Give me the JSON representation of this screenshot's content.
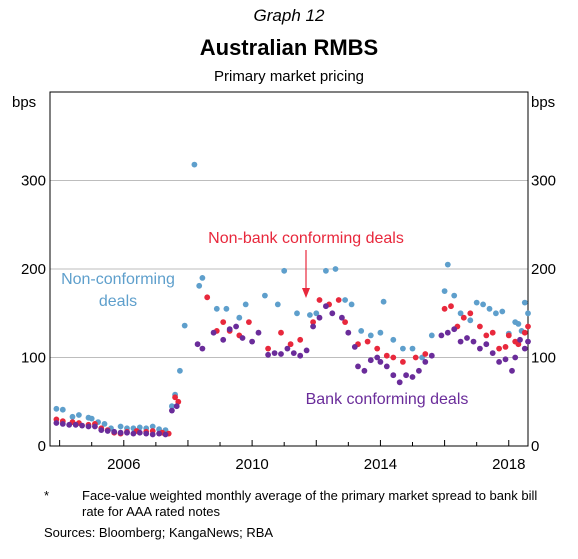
{
  "header": {
    "graph_label": "Graph 12",
    "title": "Australian RMBS",
    "subtitle": "Primary market pricing"
  },
  "footnote": {
    "marker": "*",
    "text": "Face-value weighted monthly average of the primary market spread to bank bill rate for AAA rated notes"
  },
  "sources": "Sources:  Bloomberg; KangaNews; RBA",
  "chart_data": {
    "type": "scatter",
    "ylabel_left": "bps",
    "ylabel_right": "bps",
    "xlim": [
      2003.7,
      2018.6
    ],
    "ylim": [
      0,
      400
    ],
    "yticks": [
      0,
      100,
      200,
      300
    ],
    "xticks": [
      2006,
      2010,
      2014,
      2018
    ],
    "grid": true,
    "colors": {
      "non_conforming": "#5e9fcc",
      "non_bank_conforming": "#e8283c",
      "bank_conforming": "#6a2c9a"
    },
    "annotations": [
      {
        "text": "Non-conforming",
        "series": "non_conforming"
      },
      {
        "text": "deals",
        "series": "non_conforming"
      },
      {
        "text": "Non-bank conforming deals",
        "series": "non_bank_conforming"
      },
      {
        "text": "Bank conforming deals",
        "series": "bank_conforming"
      }
    ],
    "series": [
      {
        "key": "non_conforming",
        "points": [
          [
            2003.9,
            42
          ],
          [
            2004.1,
            41
          ],
          [
            2004.4,
            33
          ],
          [
            2004.6,
            35
          ],
          [
            2004.9,
            32
          ],
          [
            2005.0,
            31
          ],
          [
            2005.2,
            27
          ],
          [
            2005.4,
            25
          ],
          [
            2005.6,
            20
          ],
          [
            2005.9,
            22
          ],
          [
            2006.1,
            20
          ],
          [
            2006.3,
            20
          ],
          [
            2006.5,
            21
          ],
          [
            2006.7,
            20
          ],
          [
            2006.9,
            22
          ],
          [
            2007.1,
            19
          ],
          [
            2007.3,
            18
          ],
          [
            2007.5,
            45
          ],
          [
            2007.6,
            58
          ],
          [
            2007.75,
            85
          ],
          [
            2007.9,
            136
          ],
          [
            2008.2,
            318
          ],
          [
            2008.35,
            181
          ],
          [
            2008.45,
            190
          ],
          [
            2008.9,
            155
          ],
          [
            2009.2,
            155
          ],
          [
            2009.6,
            145
          ],
          [
            2009.8,
            160
          ],
          [
            2010.4,
            170
          ],
          [
            2010.8,
            160
          ],
          [
            2011.0,
            198
          ],
          [
            2011.4,
            150
          ],
          [
            2011.8,
            148
          ],
          [
            2012.0,
            150
          ],
          [
            2012.3,
            198
          ],
          [
            2012.6,
            200
          ],
          [
            2012.9,
            165
          ],
          [
            2013.1,
            160
          ],
          [
            2013.4,
            130
          ],
          [
            2013.7,
            125
          ],
          [
            2014.0,
            128
          ],
          [
            2014.1,
            163
          ],
          [
            2014.4,
            120
          ],
          [
            2014.7,
            110
          ],
          [
            2015.0,
            110
          ],
          [
            2015.3,
            100
          ],
          [
            2015.6,
            125
          ],
          [
            2016.0,
            175
          ],
          [
            2016.1,
            205
          ],
          [
            2016.3,
            170
          ],
          [
            2016.5,
            150
          ],
          [
            2016.8,
            142
          ],
          [
            2017.0,
            162
          ],
          [
            2017.2,
            160
          ],
          [
            2017.4,
            155
          ],
          [
            2017.6,
            150
          ],
          [
            2017.8,
            152
          ],
          [
            2018.0,
            127
          ],
          [
            2018.2,
            140
          ],
          [
            2018.3,
            138
          ],
          [
            2018.4,
            130
          ],
          [
            2018.5,
            162
          ],
          [
            2018.6,
            150
          ]
        ]
      },
      {
        "key": "non_bank_conforming",
        "points": [
          [
            2003.9,
            30
          ],
          [
            2004.1,
            28
          ],
          [
            2004.4,
            27
          ],
          [
            2004.6,
            26
          ],
          [
            2004.9,
            24
          ],
          [
            2005.1,
            25
          ],
          [
            2005.3,
            20
          ],
          [
            2005.5,
            18
          ],
          [
            2005.7,
            15
          ],
          [
            2005.9,
            14
          ],
          [
            2006.1,
            16
          ],
          [
            2006.4,
            17
          ],
          [
            2006.7,
            16
          ],
          [
            2006.9,
            17
          ],
          [
            2007.2,
            15
          ],
          [
            2007.4,
            14
          ],
          [
            2007.6,
            55
          ],
          [
            2007.7,
            50
          ],
          [
            2008.6,
            168
          ],
          [
            2008.9,
            130
          ],
          [
            2009.1,
            140
          ],
          [
            2009.3,
            130
          ],
          [
            2009.6,
            125
          ],
          [
            2009.9,
            140
          ],
          [
            2010.5,
            110
          ],
          [
            2010.9,
            128
          ],
          [
            2011.2,
            115
          ],
          [
            2011.5,
            120
          ],
          [
            2011.9,
            140
          ],
          [
            2012.1,
            165
          ],
          [
            2012.4,
            160
          ],
          [
            2012.7,
            165
          ],
          [
            2012.9,
            140
          ],
          [
            2013.3,
            115
          ],
          [
            2013.6,
            118
          ],
          [
            2013.9,
            110
          ],
          [
            2014.2,
            102
          ],
          [
            2014.4,
            100
          ],
          [
            2014.7,
            95
          ],
          [
            2015.1,
            100
          ],
          [
            2015.4,
            104
          ],
          [
            2016.0,
            155
          ],
          [
            2016.2,
            158
          ],
          [
            2016.4,
            135
          ],
          [
            2016.6,
            145
          ],
          [
            2016.8,
            150
          ],
          [
            2017.1,
            135
          ],
          [
            2017.3,
            125
          ],
          [
            2017.5,
            128
          ],
          [
            2017.7,
            110
          ],
          [
            2017.9,
            112
          ],
          [
            2018.0,
            125
          ],
          [
            2018.2,
            118
          ],
          [
            2018.3,
            115
          ],
          [
            2018.5,
            128
          ],
          [
            2018.6,
            135
          ]
        ]
      },
      {
        "key": "bank_conforming",
        "points": [
          [
            2003.9,
            26
          ],
          [
            2004.1,
            25
          ],
          [
            2004.3,
            24
          ],
          [
            2004.5,
            24
          ],
          [
            2004.7,
            23
          ],
          [
            2004.9,
            22
          ],
          [
            2005.1,
            22
          ],
          [
            2005.3,
            18
          ],
          [
            2005.5,
            17
          ],
          [
            2005.7,
            16
          ],
          [
            2005.9,
            15
          ],
          [
            2006.1,
            15
          ],
          [
            2006.3,
            14
          ],
          [
            2006.5,
            15
          ],
          [
            2006.7,
            14
          ],
          [
            2006.9,
            13
          ],
          [
            2007.1,
            14
          ],
          [
            2007.3,
            13
          ],
          [
            2007.5,
            40
          ],
          [
            2007.65,
            45
          ],
          [
            2008.3,
            115
          ],
          [
            2008.45,
            110
          ],
          [
            2008.8,
            128
          ],
          [
            2009.1,
            120
          ],
          [
            2009.3,
            132
          ],
          [
            2009.5,
            135
          ],
          [
            2009.7,
            122
          ],
          [
            2010.0,
            118
          ],
          [
            2010.2,
            128
          ],
          [
            2010.5,
            103
          ],
          [
            2010.7,
            105
          ],
          [
            2010.9,
            104
          ],
          [
            2011.1,
            110
          ],
          [
            2011.3,
            105
          ],
          [
            2011.5,
            102
          ],
          [
            2011.7,
            108
          ],
          [
            2011.9,
            135
          ],
          [
            2012.1,
            145
          ],
          [
            2012.3,
            158
          ],
          [
            2012.5,
            150
          ],
          [
            2012.8,
            145
          ],
          [
            2013.0,
            128
          ],
          [
            2013.2,
            112
          ],
          [
            2013.3,
            90
          ],
          [
            2013.5,
            85
          ],
          [
            2013.7,
            97
          ],
          [
            2013.9,
            100
          ],
          [
            2014.0,
            95
          ],
          [
            2014.2,
            90
          ],
          [
            2014.4,
            80
          ],
          [
            2014.6,
            72
          ],
          [
            2014.8,
            80
          ],
          [
            2015.0,
            78
          ],
          [
            2015.2,
            85
          ],
          [
            2015.4,
            95
          ],
          [
            2015.6,
            102
          ],
          [
            2015.9,
            125
          ],
          [
            2016.1,
            128
          ],
          [
            2016.3,
            132
          ],
          [
            2016.5,
            118
          ],
          [
            2016.7,
            122
          ],
          [
            2016.9,
            118
          ],
          [
            2017.1,
            110
          ],
          [
            2017.3,
            115
          ],
          [
            2017.5,
            105
          ],
          [
            2017.7,
            95
          ],
          [
            2017.9,
            98
          ],
          [
            2018.1,
            85
          ],
          [
            2018.2,
            100
          ],
          [
            2018.35,
            120
          ],
          [
            2018.5,
            110
          ],
          [
            2018.6,
            118
          ]
        ]
      }
    ]
  }
}
